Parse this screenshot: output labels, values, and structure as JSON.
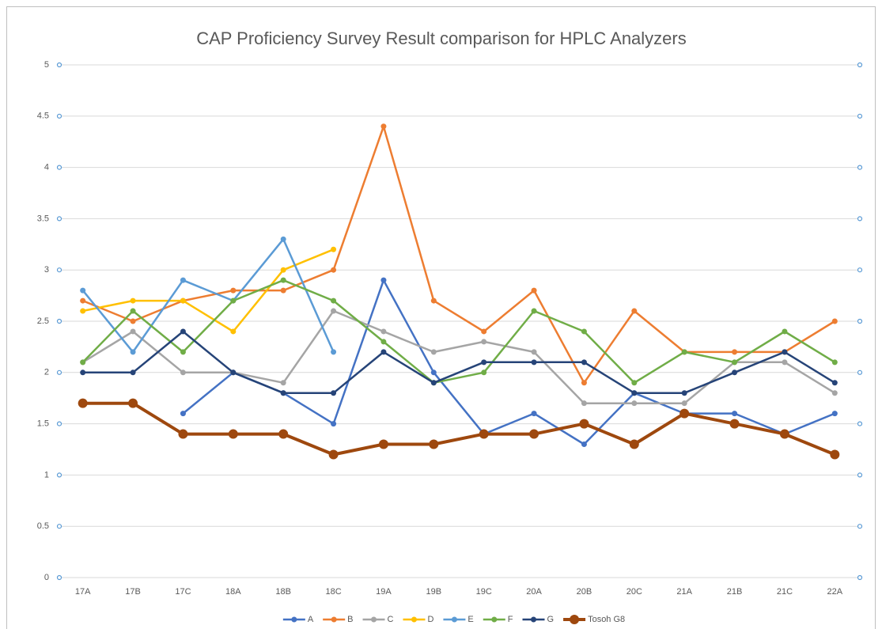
{
  "chart_data": {
    "type": "line",
    "title": "CAP Proficiency Survey Result comparison for HPLC Analyzers",
    "categories": [
      "17A",
      "17B",
      "17C",
      "18A",
      "18B",
      "18C",
      "19A",
      "19B",
      "19C",
      "20A",
      "20B",
      "20C",
      "21A",
      "21B",
      "21C",
      "22A"
    ],
    "ylim": [
      0,
      5
    ],
    "yticks": [
      0,
      0.5,
      1,
      1.5,
      2,
      2.5,
      3,
      3.5,
      4,
      4.5,
      5
    ],
    "grid": true,
    "legend": "bottom",
    "series": [
      {
        "name": "A",
        "color": "#4472c4",
        "values": [
          null,
          null,
          1.6,
          2.0,
          1.8,
          1.5,
          2.9,
          2.0,
          1.4,
          1.6,
          1.3,
          1.8,
          1.6,
          1.6,
          1.4,
          1.6
        ]
      },
      {
        "name": "B",
        "color": "#ed7d31",
        "values": [
          2.7,
          2.5,
          2.7,
          2.8,
          2.8,
          3.0,
          4.4,
          2.7,
          2.4,
          2.8,
          1.9,
          2.6,
          2.2,
          2.2,
          2.2,
          2.5
        ]
      },
      {
        "name": "C",
        "color": "#a5a5a5",
        "values": [
          2.1,
          2.4,
          2.0,
          2.0,
          1.9,
          2.6,
          2.4,
          2.2,
          2.3,
          2.2,
          1.7,
          1.7,
          1.7,
          2.1,
          2.1,
          1.8
        ]
      },
      {
        "name": "D",
        "color": "#ffc000",
        "values": [
          2.6,
          2.7,
          2.7,
          2.4,
          3.0,
          3.2,
          null,
          null,
          null,
          null,
          null,
          null,
          null,
          null,
          null,
          null
        ]
      },
      {
        "name": "E",
        "color": "#5b9bd5",
        "values": [
          2.8,
          2.2,
          2.9,
          2.7,
          3.3,
          2.2,
          null,
          null,
          null,
          null,
          null,
          null,
          null,
          null,
          null,
          null
        ]
      },
      {
        "name": "F",
        "color": "#70ad47",
        "values": [
          2.1,
          2.6,
          2.2,
          2.7,
          2.9,
          2.7,
          2.3,
          1.9,
          2.0,
          2.6,
          2.4,
          1.9,
          2.2,
          2.1,
          2.4,
          2.1
        ]
      },
      {
        "name": "G",
        "color": "#264478",
        "values": [
          2.0,
          2.0,
          2.4,
          2.0,
          1.8,
          1.8,
          2.2,
          1.9,
          2.1,
          2.1,
          2.1,
          1.8,
          1.8,
          2.0,
          2.2,
          1.9
        ]
      },
      {
        "name": "Tosoh G8",
        "color": "#9e480e",
        "values": [
          1.7,
          1.7,
          1.4,
          1.4,
          1.4,
          1.2,
          1.3,
          1.3,
          1.4,
          1.4,
          1.5,
          1.3,
          1.6,
          1.5,
          1.4,
          1.2
        ]
      }
    ]
  }
}
